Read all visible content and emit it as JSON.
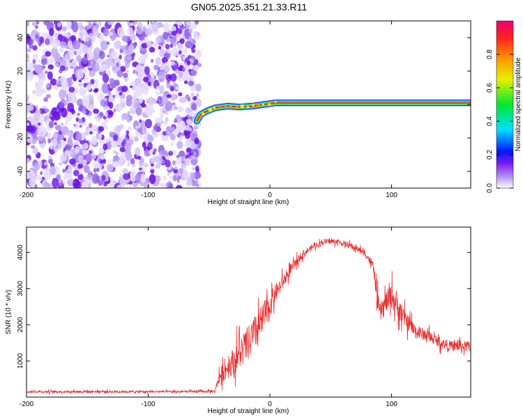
{
  "title": "GN05.2025.351.21.33.R11",
  "chart_data": [
    {
      "type": "heatmap",
      "xlabel": "Height of straight line (km)",
      "ylabel": "Frequency (Hz)",
      "xlim": [
        -200,
        165
      ],
      "ylim": [
        -50,
        50
      ],
      "x_ticks": [
        -200,
        -100,
        0,
        100
      ],
      "y_ticks": [
        -40,
        -20,
        0,
        20,
        40
      ],
      "noise_region_x": [
        -200,
        -58
      ],
      "signal_line": {
        "onset_x": -60,
        "points": [
          [
            -60,
            -10
          ],
          [
            -57,
            -6
          ],
          [
            -52,
            -4
          ],
          [
            -45,
            -2
          ],
          [
            -35,
            -1
          ],
          [
            -25,
            -1.5
          ],
          [
            -15,
            -1
          ],
          [
            -5,
            0
          ],
          [
            5,
            1
          ],
          [
            10,
            1
          ],
          [
            165,
            1
          ]
        ]
      },
      "colorbar": {
        "label": "Normalized spectral amplitude",
        "range": [
          0,
          1
        ],
        "ticks": [
          0.0,
          0.2,
          0.4,
          0.6,
          0.8
        ],
        "colors": [
          "#ffffff",
          "#b99ff0",
          "#7a18f0",
          "#0018ff",
          "#00e0ff",
          "#00e830",
          "#e8f000",
          "#ff9000",
          "#ff2020",
          "#f00070"
        ]
      }
    },
    {
      "type": "line",
      "xlabel": "Height of straight line (km)",
      "ylabel": "SNR (10 * v/v)",
      "xlim": [
        -200,
        165
      ],
      "ylim": [
        0,
        4700
      ],
      "x_ticks": [
        -200,
        -100,
        0,
        100
      ],
      "y_ticks": [
        1000,
        2000,
        3000,
        4000
      ],
      "color": "#e83030",
      "series": [
        {
          "name": "SNR",
          "x": [
            -200,
            -150,
            -100,
            -60,
            -45,
            -42,
            -35,
            -25,
            -15,
            -5,
            5,
            15,
            25,
            35,
            45,
            55,
            65,
            75,
            80,
            85,
            90,
            95,
            100,
            110,
            120,
            130,
            140,
            150,
            165
          ],
          "mean": [
            150,
            150,
            150,
            150,
            160,
            550,
            800,
            1200,
            1600,
            2200,
            2900,
            3400,
            3900,
            4150,
            4300,
            4300,
            4200,
            4050,
            3900,
            3600,
            2300,
            2600,
            2800,
            2200,
            1800,
            1700,
            1500,
            1400,
            1400
          ],
          "noise": [
            60,
            60,
            60,
            60,
            60,
            400,
            600,
            900,
            1000,
            900,
            500,
            300,
            200,
            150,
            150,
            150,
            150,
            150,
            200,
            300,
            600,
            600,
            700,
            500,
            400,
            300,
            300,
            300,
            300
          ]
        }
      ]
    }
  ]
}
